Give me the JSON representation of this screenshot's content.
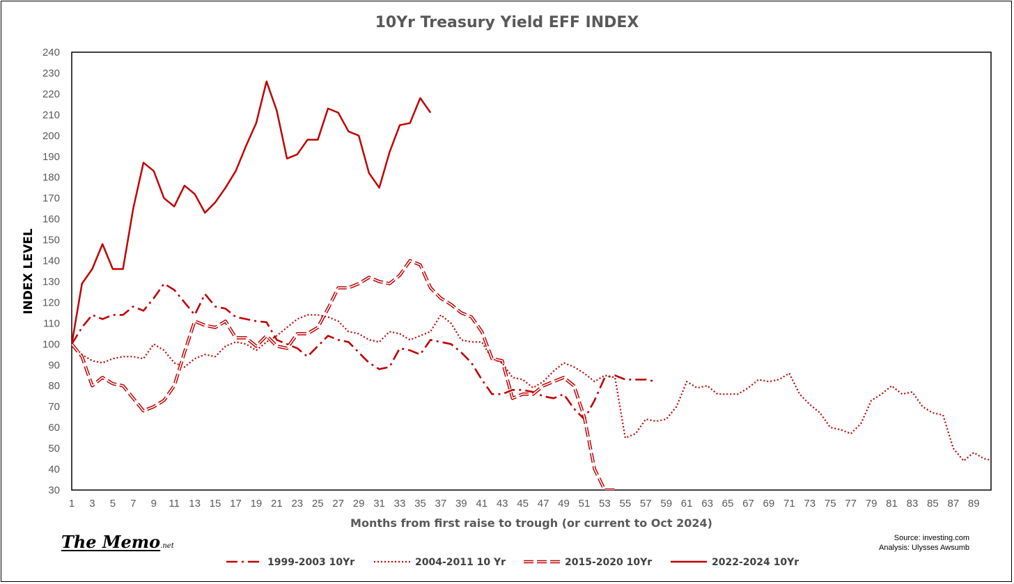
{
  "chart_data": {
    "type": "line",
    "title": "10Yr Treasury Yield EFF INDEX",
    "xlabel": "Months from first raise to trough (or current to Oct 2024)",
    "ylabel": "INDEX LEVEL",
    "xlim": [
      1,
      90
    ],
    "ylim": [
      30,
      240
    ],
    "x_ticks": [
      1,
      3,
      5,
      7,
      9,
      11,
      13,
      15,
      17,
      19,
      21,
      23,
      25,
      27,
      29,
      31,
      33,
      35,
      37,
      39,
      41,
      43,
      45,
      47,
      49,
      51,
      53,
      55,
      57,
      59,
      61,
      63,
      65,
      67,
      69,
      71,
      73,
      75,
      77,
      79,
      81,
      83,
      85,
      87,
      89
    ],
    "y_ticks": [
      30,
      40,
      50,
      60,
      70,
      80,
      90,
      100,
      110,
      120,
      130,
      140,
      150,
      160,
      170,
      180,
      190,
      200,
      210,
      220,
      230,
      240
    ],
    "grid": false,
    "legend_position": "bottom",
    "color": "#c00000",
    "series": [
      {
        "name": "1999-2003 10Yr",
        "dash": "dashdot",
        "x_start": 1,
        "values": [
          100,
          108,
          114,
          112,
          114,
          114,
          118,
          116,
          122,
          129,
          126,
          120,
          114,
          124,
          118,
          117,
          113,
          112,
          111,
          110.5,
          102,
          100,
          98,
          94,
          99,
          104,
          102,
          101,
          96,
          91,
          88,
          89,
          98,
          97,
          95,
          102,
          101,
          100,
          96,
          91,
          83,
          76,
          76,
          78,
          78,
          77,
          75,
          74,
          76,
          69,
          64,
          73,
          84,
          85,
          83,
          83,
          83,
          82
        ]
      },
      {
        "name": "2004-2011 10 Yr",
        "dash": "dotted",
        "x_start": 1,
        "values": [
          100,
          95,
          92,
          91,
          93,
          94,
          94,
          93,
          100,
          97,
          91,
          89,
          93,
          95,
          94,
          99,
          101,
          100,
          97,
          101,
          104,
          108,
          112,
          114,
          114,
          113,
          111,
          106,
          105,
          102,
          101,
          106,
          105,
          102,
          104,
          106,
          114,
          110,
          102,
          101,
          101,
          93,
          91,
          84,
          83,
          79,
          82,
          87,
          91,
          89,
          86,
          82,
          85,
          84,
          55,
          57,
          64,
          63,
          64,
          70,
          82,
          79,
          80,
          76,
          76,
          76,
          79,
          83,
          82,
          83,
          86,
          76,
          71,
          67,
          60,
          59,
          57,
          62,
          73,
          76,
          80,
          76,
          77,
          70,
          67,
          66,
          50,
          44,
          48,
          45,
          44
        ]
      },
      {
        "name": "2015-2020 10Yr",
        "dash": "longdash",
        "x_start": 1,
        "values": [
          100,
          94,
          80,
          84,
          81,
          80,
          74,
          68,
          70,
          73,
          80,
          96,
          111,
          109,
          108,
          111,
          103,
          103,
          99,
          104,
          99,
          98,
          105,
          105,
          108,
          117,
          127,
          127,
          129,
          132,
          130,
          129,
          133,
          140,
          138,
          127,
          122,
          119,
          115,
          113,
          106,
          93,
          92,
          74,
          76,
          76,
          80,
          82,
          84,
          80,
          65,
          40,
          30,
          30
        ]
      },
      {
        "name": "2022-2024 10Yr",
        "dash": "solid",
        "x_start": 1,
        "values": [
          100,
          129,
          136,
          148,
          136,
          136,
          165,
          187,
          183,
          170,
          166,
          176,
          172,
          163,
          168,
          175,
          183,
          195,
          206,
          226,
          212,
          189,
          191,
          198,
          198,
          213,
          211,
          202,
          200,
          182,
          175,
          192,
          205,
          206,
          218,
          211
        ]
      }
    ]
  },
  "footer": {
    "logo_main": "The Memo",
    "logo_suffix": ".net",
    "source_line": "Source: investing.com",
    "analysis_line": "Analysis: Ulysses Awsumb"
  }
}
